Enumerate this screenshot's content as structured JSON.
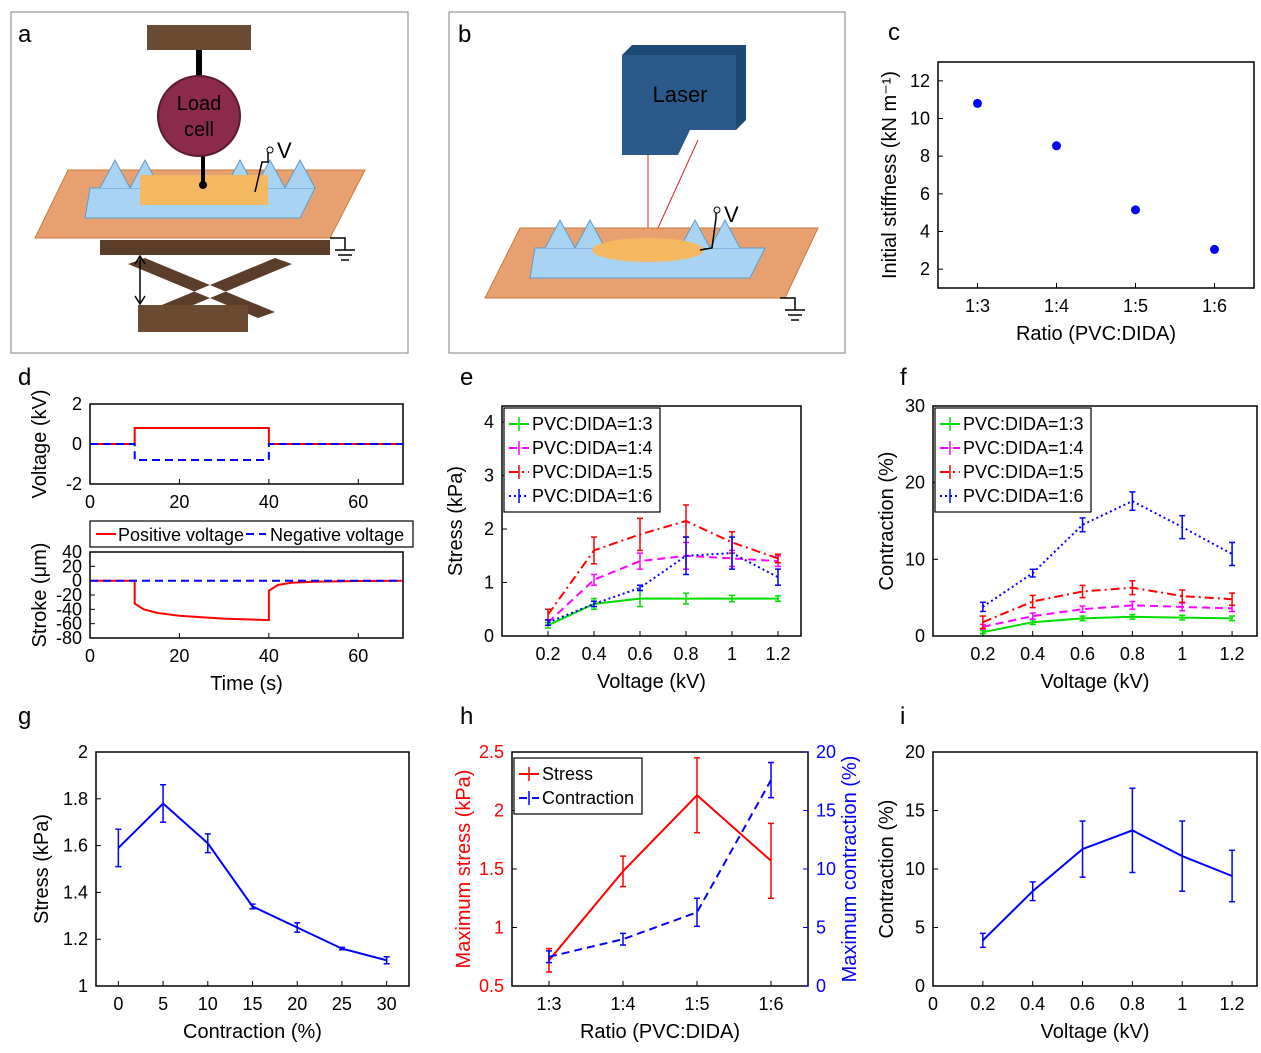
{
  "panels": {
    "a": {
      "label": "a",
      "load_cell": [
        "Load",
        "cell"
      ],
      "voltage": "V"
    },
    "b": {
      "label": "b",
      "laser": "Laser",
      "voltage": "V"
    }
  },
  "colors": {
    "blue": "#0000ff",
    "red": "#ff0000",
    "green": "#00dd00",
    "magenta": "#ff00ff",
    "black": "#000000"
  },
  "chart_data": [
    {
      "id": "c",
      "label": "c",
      "type": "scatter",
      "xlabel": "Ratio (PVC:DIDA)",
      "ylabel": "Initial stiffness (kN m⁻¹)",
      "categories": [
        "1:3",
        "1:4",
        "1:5",
        "1:6"
      ],
      "ylim": [
        1,
        13
      ],
      "yticks": [
        2,
        4,
        6,
        8,
        10,
        12
      ],
      "series": [
        {
          "values": [
            10.8,
            8.55,
            5.15,
            3.05
          ],
          "color": "#0000ff"
        }
      ]
    },
    {
      "id": "d_top",
      "label": "d",
      "type": "line",
      "ylabel": "Voltage (kV)",
      "xlim": [
        0,
        70
      ],
      "xticks": [
        0,
        20,
        40,
        60
      ],
      "ylim": [
        -2,
        2
      ],
      "yticks": [
        -2,
        0,
        2
      ],
      "series": [
        {
          "name": "Positive voltage",
          "color": "#ff0000",
          "style": "solid",
          "points": [
            [
              0,
              0
            ],
            [
              10,
              0
            ],
            [
              10,
              0.8
            ],
            [
              40,
              0.8
            ],
            [
              40,
              0
            ],
            [
              70,
              0
            ]
          ]
        },
        {
          "name": "Negative voltage",
          "color": "#0000ff",
          "style": "dash",
          "points": [
            [
              0,
              0
            ],
            [
              10,
              0
            ],
            [
              10,
              -0.8
            ],
            [
              40,
              -0.8
            ],
            [
              40,
              0
            ],
            [
              70,
              0
            ]
          ]
        }
      ]
    },
    {
      "id": "d_bottom",
      "type": "line",
      "xlabel": "Time (s)",
      "ylabel": "Stroke (μm)",
      "xlim": [
        0,
        70
      ],
      "xticks": [
        0,
        20,
        40,
        60
      ],
      "ylim": [
        -80,
        40
      ],
      "yticks": [
        -80,
        -60,
        -40,
        -20,
        0,
        20,
        40
      ],
      "legend": [
        "Positive voltage",
        "Negative voltage"
      ],
      "series": [
        {
          "name": "Positive voltage",
          "color": "#ff0000",
          "style": "solid",
          "points": [
            [
              0,
              0
            ],
            [
              10,
              0
            ],
            [
              10,
              -32
            ],
            [
              12,
              -40
            ],
            [
              15,
              -45
            ],
            [
              20,
              -49
            ],
            [
              25,
              -51
            ],
            [
              30,
              -53
            ],
            [
              35,
              -54
            ],
            [
              40,
              -55
            ],
            [
              40,
              -14
            ],
            [
              42,
              -6
            ],
            [
              45,
              -3
            ],
            [
              50,
              -1.5
            ],
            [
              60,
              -0.5
            ],
            [
              70,
              0
            ]
          ]
        },
        {
          "name": "Negative voltage",
          "color": "#0000ff",
          "style": "dash",
          "points": [
            [
              0,
              0
            ],
            [
              70,
              0
            ]
          ]
        }
      ]
    },
    {
      "id": "e",
      "label": "e",
      "type": "line",
      "xlabel": "Voltage (kV)",
      "ylabel": "Stress (kPa)",
      "x": [
        0.2,
        0.4,
        0.6,
        0.8,
        1,
        1.2
      ],
      "xlim": [
        0,
        1.3
      ],
      "xticks": [
        0.2,
        0.4,
        0.6,
        0.8,
        1,
        1.2
      ],
      "ylim": [
        0,
        4.3
      ],
      "yticks": [
        0,
        1,
        2,
        3,
        4
      ],
      "series": [
        {
          "name": "PVC:DIDA=1:3",
          "color": "#00dd00",
          "style": "solid",
          "values": [
            0.2,
            0.6,
            0.7,
            0.7,
            0.7,
            0.7
          ],
          "errors": [
            0.05,
            0.1,
            0.15,
            0.1,
            0.06,
            0.05
          ]
        },
        {
          "name": "PVC:DIDA=1:4",
          "color": "#ff00ff",
          "style": "dash",
          "values": [
            0.25,
            1.05,
            1.4,
            1.5,
            1.45,
            1.4
          ],
          "errors": [
            0.05,
            0.1,
            0.15,
            0.25,
            0.15,
            0.1
          ]
        },
        {
          "name": "PVC:DIDA=1:5",
          "color": "#ff0000",
          "style": "dashdot",
          "values": [
            0.4,
            1.6,
            1.9,
            2.15,
            1.75,
            1.45
          ],
          "errors": [
            0.1,
            0.25,
            0.3,
            0.3,
            0.2,
            0.08
          ]
        },
        {
          "name": "PVC:DIDA=1:6",
          "color": "#0000ff",
          "style": "dot",
          "values": [
            0.25,
            0.6,
            0.9,
            1.5,
            1.55,
            1.1
          ],
          "errors": [
            0.05,
            0.05,
            0.05,
            0.35,
            0.3,
            0.15
          ]
        }
      ]
    },
    {
      "id": "f",
      "label": "f",
      "type": "line",
      "xlabel": "Voltage (kV)",
      "ylabel": "Contraction (%)",
      "x": [
        0.2,
        0.4,
        0.6,
        0.8,
        1,
        1.2
      ],
      "xlim": [
        0,
        1.3
      ],
      "xticks": [
        0.2,
        0.4,
        0.6,
        0.8,
        1,
        1.2
      ],
      "ylim": [
        0,
        30
      ],
      "yticks": [
        0,
        10,
        20,
        30
      ],
      "series": [
        {
          "name": "PVC:DIDA=1:3",
          "color": "#00dd00",
          "style": "solid",
          "values": [
            0.5,
            1.8,
            2.3,
            2.5,
            2.4,
            2.3
          ],
          "errors": [
            0.2,
            0.3,
            0.3,
            0.3,
            0.3,
            0.3
          ]
        },
        {
          "name": "PVC:DIDA=1:4",
          "color": "#ff00ff",
          "style": "dash",
          "values": [
            1.2,
            2.6,
            3.5,
            4.0,
            3.8,
            3.6
          ],
          "errors": [
            0.3,
            0.4,
            0.4,
            0.5,
            0.5,
            0.4
          ]
        },
        {
          "name": "PVC:DIDA=1:5",
          "color": "#ff0000",
          "style": "dashdot",
          "values": [
            1.8,
            4.5,
            5.8,
            6.3,
            5.2,
            4.8
          ],
          "errors": [
            0.8,
            0.8,
            0.8,
            0.9,
            0.8,
            0.8
          ]
        },
        {
          "name": "PVC:DIDA=1:6",
          "color": "#0000ff",
          "style": "dot",
          "values": [
            3.8,
            8.2,
            14.5,
            17.6,
            14.2,
            10.7
          ],
          "errors": [
            0.6,
            0.5,
            0.9,
            1.2,
            1.5,
            1.5
          ]
        }
      ]
    },
    {
      "id": "g",
      "label": "g",
      "type": "line",
      "xlabel": "Contraction (%)",
      "ylabel": "Stress (kPa)",
      "x": [
        0,
        5,
        10,
        15,
        20,
        25,
        30
      ],
      "xlim": [
        -2.5,
        32.5
      ],
      "xticks": [
        0,
        5,
        10,
        15,
        20,
        25,
        30
      ],
      "ylim": [
        1,
        2
      ],
      "yticks": [
        1,
        1.2,
        1.4,
        1.6,
        1.8,
        2
      ],
      "series": [
        {
          "color": "#0000ff",
          "style": "solid",
          "values": [
            1.59,
            1.78,
            1.61,
            1.34,
            1.25,
            1.16,
            1.11
          ],
          "errors": [
            0.08,
            0.08,
            0.04,
            0.01,
            0.02,
            0.005,
            0.015
          ]
        }
      ]
    },
    {
      "id": "h",
      "label": "h",
      "type": "line",
      "xlabel": "Ratio (PVC:DIDA)",
      "ylabel": "Maximum stress (kPa)",
      "ylabel_right": "Maximum contraction (%)",
      "categories": [
        "1:3",
        "1:4",
        "1:5",
        "1:6"
      ],
      "ylim": [
        0.5,
        2.5
      ],
      "yticks": [
        0.5,
        1,
        1.5,
        2,
        2.5
      ],
      "ylim_right": [
        0,
        20
      ],
      "yticks_right": [
        0,
        5,
        10,
        15,
        20
      ],
      "legend": [
        "Stress",
        "Contraction"
      ],
      "series": [
        {
          "name": "Stress",
          "axis": "left",
          "color": "#ff0000",
          "style": "solid",
          "values": [
            0.72,
            1.48,
            2.13,
            1.57
          ],
          "errors": [
            0.1,
            0.13,
            0.32,
            0.32
          ]
        },
        {
          "name": "Contraction",
          "axis": "right",
          "color": "#0000ff",
          "style": "dash",
          "values": [
            2.5,
            4.0,
            6.3,
            17.6
          ],
          "errors": [
            0.5,
            0.5,
            1.2,
            1.5
          ]
        }
      ]
    },
    {
      "id": "i",
      "label": "i",
      "type": "line",
      "xlabel": "Voltage (kV)",
      "ylabel": "Contraction (%)",
      "x": [
        0.2,
        0.4,
        0.6,
        0.8,
        1,
        1.2
      ],
      "xlim": [
        0,
        1.3
      ],
      "xticks": [
        0,
        0.2,
        0.4,
        0.6,
        0.8,
        1,
        1.2
      ],
      "ylim": [
        0,
        20
      ],
      "yticks": [
        0,
        5,
        10,
        15,
        20
      ],
      "series": [
        {
          "color": "#0000ff",
          "style": "solid",
          "values": [
            3.9,
            8.1,
            11.7,
            13.3,
            11.1,
            9.4
          ],
          "errors": [
            0.6,
            0.8,
            2.4,
            3.6,
            3.0,
            2.2
          ]
        }
      ]
    }
  ]
}
